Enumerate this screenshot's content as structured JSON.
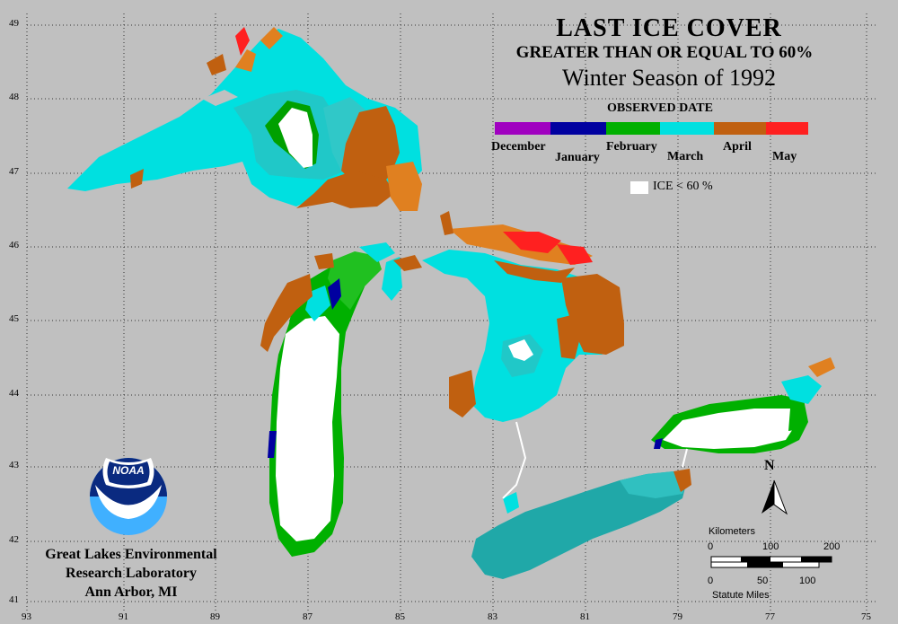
{
  "title": {
    "line1": "LAST ICE COVER",
    "line2": "GREATER THAN OR EQUAL TO 60%",
    "line3": "Winter Season of 1992"
  },
  "legend": {
    "heading": "OBSERVED DATE",
    "months": [
      "December",
      "January",
      "February",
      "March",
      "April",
      "May"
    ],
    "ice_label": "ICE < 60 %",
    "colors": {
      "december": "#a000c0",
      "january": "#0000a0",
      "february": "#00b000",
      "march": "#00e0e0",
      "april": "#c06010",
      "may": "#ff2020"
    }
  },
  "latitudes": [
    "49",
    "48",
    "47",
    "46",
    "45",
    "44",
    "43",
    "42",
    "41"
  ],
  "longitudes": [
    "93",
    "91",
    "89",
    "87",
    "85",
    "83",
    "81",
    "79",
    "77",
    "75"
  ],
  "credit": {
    "line1": "Great Lakes Environmental",
    "line2": "Research Laboratory",
    "line3": "Ann Arbor, MI"
  },
  "logo": {
    "text": "NOAA"
  },
  "north_label": "N",
  "scale": {
    "km_label": "Kilometers",
    "km_ticks": [
      "0",
      "100",
      "200"
    ],
    "mi_ticks": [
      "0",
      "50",
      "100"
    ],
    "mi_label": "Statute Miles"
  },
  "icons": [
    "north-arrow-icon",
    "noaa-logo-icon"
  ]
}
